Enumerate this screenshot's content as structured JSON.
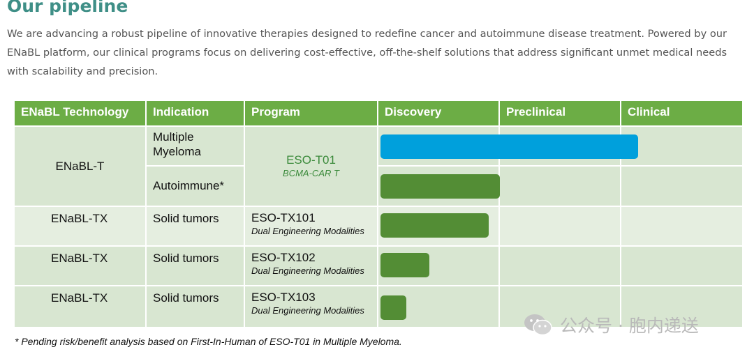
{
  "heading": {
    "title": "Our pipeline",
    "intro": "We are advancing a robust pipeline of innovative therapies designed to redefine cancer and autoimmune disease treatment. Powered by our ENaBL platform, our clinical programs focus on delivering cost-effective, off-the-shelf solutions that address significant unmet medical needs with scalability and precision."
  },
  "colors": {
    "header_green": "#6cad45",
    "title_teal": "#3f8f87",
    "bar_blue": "#00a0dc",
    "bar_green": "#538d35",
    "program_green_text": "#3b8a3b"
  },
  "table": {
    "headers": [
      "ENaBL Technology",
      "Indication",
      "Program",
      "Discovery",
      "Preclinical",
      "Clinical"
    ],
    "rows": [
      {
        "technology": "ENaBL-T",
        "indications": [
          "Multiple Myeloma",
          "Autoimmune*"
        ],
        "program": "ESO-T01",
        "program_sub": "BCMA-CAR T"
      },
      {
        "technology": "ENaBL-TX",
        "indications": [
          "Solid tumors"
        ],
        "program": "ESO-TX101",
        "program_sub": "Dual Engineering Modalities"
      },
      {
        "technology": "ENaBL-TX",
        "indications": [
          "Solid tumors"
        ],
        "program": "ESO-TX102",
        "program_sub": "Dual Engineering Modalities"
      },
      {
        "technology": "ENaBL-TX",
        "indications": [
          "Solid tumors"
        ],
        "program": "ESO-TX103",
        "program_sub": "Dual Engineering Modalities"
      }
    ]
  },
  "chart_data": {
    "type": "bar",
    "orientation": "horizontal",
    "stages": [
      "Discovery",
      "Preclinical",
      "Clinical"
    ],
    "categories": [
      "ESO-T01 Multiple Myeloma",
      "ESO-T01 Autoimmune*",
      "ESO-TX101 Solid tumors",
      "ESO-TX102 Solid tumors",
      "ESO-TX103 Solid tumors"
    ],
    "values": [
      2.12,
      0.98,
      0.89,
      0.4,
      0.21
    ],
    "xlim": [
      0,
      3
    ],
    "value_unit": "stages completed",
    "bar_colors": [
      "#00a0dc",
      "#538d35",
      "#538d35",
      "#538d35",
      "#538d35"
    ],
    "grid": false,
    "legend": "none"
  },
  "footnote": "* Pending risk/benefit analysis based on First-In-Human of ESO-T01 in Multiple Myeloma.",
  "watermark": {
    "icon": "wechat-icon",
    "text": "公众号 · 胞内递送"
  }
}
